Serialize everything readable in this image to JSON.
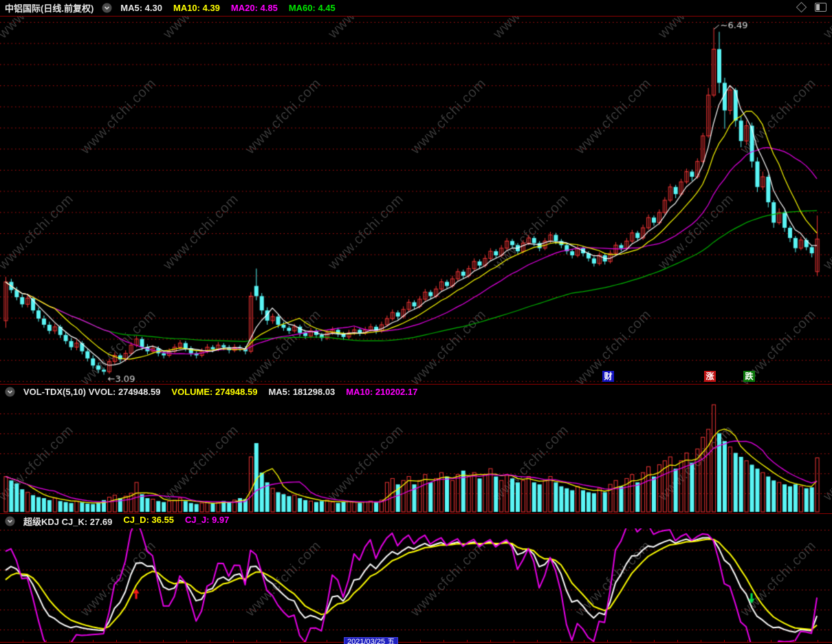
{
  "window": {
    "top_right_icons": [
      "diamond-icon",
      "panel-icon"
    ]
  },
  "main_header": {
    "title": "中铝国际(日线.前复权)",
    "indicators": [
      {
        "label": "MA5: 4.30",
        "color": "#e8e8e8"
      },
      {
        "label": "MA10: 4.39",
        "color": "#ffff00"
      },
      {
        "label": "MA20: 4.85",
        "color": "#ff00ff"
      },
      {
        "label": "MA60: 4.45",
        "color": "#00e600"
      }
    ]
  },
  "volume_header": {
    "segments": [
      {
        "label": "VOL-TDX(5,10) VVOL: 274948.59",
        "color": "#e8e8e8"
      },
      {
        "label": "VOLUME: 274948.59",
        "color": "#ffff00"
      },
      {
        "label": "MA5: 181298.03",
        "color": "#e8e8e8"
      },
      {
        "label": "MA10: 210202.17",
        "color": "#ff00ff"
      }
    ]
  },
  "kdj_header": {
    "segments": [
      {
        "label": "超级KDJ CJ_K: 27.69",
        "color": "#e8e8e8"
      },
      {
        "label": "CJ_D: 36.55",
        "color": "#ffff00"
      },
      {
        "label": "CJ_J: 9.97",
        "color": "#ff00ff"
      }
    ]
  },
  "badges": [
    {
      "label": "财",
      "bg": "#1515c0"
    },
    {
      "label": "涨",
      "bg": "#c01515"
    },
    {
      "label": "跌",
      "bg": "#0d7a0d"
    }
  ],
  "bottom_bar": {
    "date_label": "2021/03/25 五"
  },
  "watermark": {
    "text": "www.cfchi.com"
  },
  "annotations": {
    "high_label": "6.49",
    "low_label": "3.09"
  },
  "chart_data": {
    "type": "candlestick",
    "title": "中铝国际 日线 前复权",
    "price_high": 6.49,
    "price_low": 3.09,
    "y_range": [
      3.0,
      6.6
    ],
    "grid": "dotted-red-horizontal",
    "price_mas": [
      {
        "period": 5,
        "color": "#ffffff"
      },
      {
        "period": 10,
        "color": "#ffff00"
      },
      {
        "period": 20,
        "color": "#e800e8"
      },
      {
        "period": 60,
        "color": "#00b400"
      }
    ],
    "volume_mas": [
      {
        "period": 5,
        "color": "#ffff00"
      },
      {
        "period": 10,
        "color": "#e800e8"
      }
    ],
    "volume_scale_max": 560,
    "markers": {
      "high_index": 130,
      "low_index": 18,
      "buy_arrow_index": 24,
      "sell_arrow_index": 137
    },
    "kdj_last": {
      "K": 27.69,
      "D": 36.55,
      "J": 9.97
    },
    "candles": [
      [
        3.62,
        4.05,
        3.55,
        4.0
      ],
      [
        4.0,
        4.03,
        3.89,
        3.92
      ],
      [
        3.92,
        3.95,
        3.82,
        3.85
      ],
      [
        3.85,
        3.88,
        3.75,
        3.78
      ],
      [
        3.78,
        3.87,
        3.75,
        3.84
      ],
      [
        3.84,
        3.86,
        3.69,
        3.72
      ],
      [
        3.72,
        3.75,
        3.61,
        3.64
      ],
      [
        3.64,
        3.67,
        3.55,
        3.58
      ],
      [
        3.58,
        3.61,
        3.49,
        3.52
      ],
      [
        3.52,
        3.59,
        3.49,
        3.56
      ],
      [
        3.56,
        3.58,
        3.45,
        3.48
      ],
      [
        3.48,
        3.51,
        3.39,
        3.42
      ],
      [
        3.42,
        3.45,
        3.33,
        3.36
      ],
      [
        3.36,
        3.43,
        3.33,
        3.4
      ],
      [
        3.4,
        3.42,
        3.29,
        3.32
      ],
      [
        3.32,
        3.35,
        3.22,
        3.25
      ],
      [
        3.25,
        3.28,
        3.15,
        3.18
      ],
      [
        3.18,
        3.21,
        3.11,
        3.14
      ],
      [
        3.14,
        3.16,
        3.09,
        3.12
      ],
      [
        3.12,
        3.25,
        3.1,
        3.22
      ],
      [
        3.22,
        3.31,
        3.19,
        3.28
      ],
      [
        3.28,
        3.3,
        3.21,
        3.24
      ],
      [
        3.24,
        3.33,
        3.22,
        3.3
      ],
      [
        3.3,
        3.41,
        3.28,
        3.38
      ],
      [
        3.38,
        3.47,
        3.36,
        3.44
      ],
      [
        3.44,
        3.46,
        3.33,
        3.36
      ],
      [
        3.36,
        3.39,
        3.29,
        3.32
      ],
      [
        3.32,
        3.38,
        3.3,
        3.35
      ],
      [
        3.35,
        3.37,
        3.27,
        3.3
      ],
      [
        3.3,
        3.33,
        3.25,
        3.28
      ],
      [
        3.28,
        3.35,
        3.26,
        3.32
      ],
      [
        3.32,
        3.39,
        3.3,
        3.36
      ],
      [
        3.36,
        3.43,
        3.34,
        3.4
      ],
      [
        3.4,
        3.42,
        3.32,
        3.35
      ],
      [
        3.35,
        3.37,
        3.27,
        3.3
      ],
      [
        3.3,
        3.32,
        3.25,
        3.28
      ],
      [
        3.28,
        3.35,
        3.26,
        3.32
      ],
      [
        3.32,
        3.39,
        3.3,
        3.36
      ],
      [
        3.36,
        3.38,
        3.31,
        3.34
      ],
      [
        3.34,
        3.41,
        3.32,
        3.38
      ],
      [
        3.38,
        3.4,
        3.33,
        3.36
      ],
      [
        3.36,
        3.38,
        3.3,
        3.33
      ],
      [
        3.33,
        3.39,
        3.31,
        3.36
      ],
      [
        3.36,
        3.38,
        3.32,
        3.35
      ],
      [
        3.35,
        3.37,
        3.29,
        3.32
      ],
      [
        3.32,
        3.9,
        3.3,
        3.86
      ],
      [
        3.96,
        4.13,
        3.82,
        3.86
      ],
      [
        3.86,
        3.89,
        3.68,
        3.72
      ],
      [
        3.72,
        3.75,
        3.58,
        3.62
      ],
      [
        3.62,
        3.69,
        3.59,
        3.66
      ],
      [
        3.66,
        3.68,
        3.55,
        3.58
      ],
      [
        3.58,
        3.61,
        3.52,
        3.55
      ],
      [
        3.55,
        3.57,
        3.49,
        3.52
      ],
      [
        3.52,
        3.59,
        3.5,
        3.56
      ],
      [
        3.56,
        3.58,
        3.47,
        3.5
      ],
      [
        3.5,
        3.52,
        3.44,
        3.47
      ],
      [
        3.47,
        3.55,
        3.45,
        3.52
      ],
      [
        3.52,
        3.54,
        3.45,
        3.48
      ],
      [
        3.48,
        3.5,
        3.42,
        3.45
      ],
      [
        3.45,
        3.53,
        3.43,
        3.5
      ],
      [
        3.5,
        3.56,
        3.48,
        3.53
      ],
      [
        3.53,
        3.55,
        3.46,
        3.49
      ],
      [
        3.49,
        3.51,
        3.43,
        3.46
      ],
      [
        3.46,
        3.53,
        3.44,
        3.5
      ],
      [
        3.5,
        3.56,
        3.48,
        3.53
      ],
      [
        3.53,
        3.55,
        3.47,
        3.5
      ],
      [
        3.5,
        3.56,
        3.48,
        3.53
      ],
      [
        3.53,
        3.59,
        3.51,
        3.56
      ],
      [
        3.56,
        3.58,
        3.49,
        3.52
      ],
      [
        3.52,
        3.61,
        3.5,
        3.58
      ],
      [
        3.58,
        3.67,
        3.56,
        3.64
      ],
      [
        3.64,
        3.73,
        3.62,
        3.7
      ],
      [
        3.7,
        3.72,
        3.63,
        3.66
      ],
      [
        3.66,
        3.76,
        3.64,
        3.73
      ],
      [
        3.73,
        3.83,
        3.71,
        3.8
      ],
      [
        3.8,
        3.82,
        3.73,
        3.76
      ],
      [
        3.76,
        3.86,
        3.74,
        3.83
      ],
      [
        3.83,
        3.93,
        3.81,
        3.9
      ],
      [
        3.9,
        3.92,
        3.83,
        3.86
      ],
      [
        3.86,
        3.96,
        3.84,
        3.93
      ],
      [
        3.93,
        4.03,
        3.91,
        4.0
      ],
      [
        4.0,
        4.02,
        3.93,
        3.96
      ],
      [
        3.96,
        4.06,
        3.94,
        4.03
      ],
      [
        4.03,
        4.13,
        4.01,
        4.1
      ],
      [
        4.1,
        4.12,
        4.03,
        4.06
      ],
      [
        4.06,
        4.16,
        4.04,
        4.13
      ],
      [
        4.13,
        4.23,
        4.11,
        4.2
      ],
      [
        4.2,
        4.22,
        4.13,
        4.16
      ],
      [
        4.16,
        4.26,
        4.14,
        4.23
      ],
      [
        4.23,
        4.33,
        4.21,
        4.3
      ],
      [
        4.3,
        4.32,
        4.23,
        4.26
      ],
      [
        4.26,
        4.36,
        4.24,
        4.33
      ],
      [
        4.33,
        4.43,
        4.31,
        4.4
      ],
      [
        4.4,
        4.42,
        4.33,
        4.36
      ],
      [
        4.36,
        4.38,
        4.27,
        4.3
      ],
      [
        4.3,
        4.41,
        4.28,
        4.38
      ],
      [
        4.38,
        4.46,
        4.36,
        4.43
      ],
      [
        4.43,
        4.45,
        4.35,
        4.38
      ],
      [
        4.38,
        4.4,
        4.3,
        4.33
      ],
      [
        4.33,
        4.43,
        4.31,
        4.4
      ],
      [
        4.4,
        4.49,
        4.38,
        4.46
      ],
      [
        4.46,
        4.48,
        4.37,
        4.4
      ],
      [
        4.4,
        4.42,
        4.33,
        4.36
      ],
      [
        4.36,
        4.38,
        4.27,
        4.3
      ],
      [
        4.3,
        4.32,
        4.23,
        4.26
      ],
      [
        4.26,
        4.36,
        4.24,
        4.33
      ],
      [
        4.33,
        4.35,
        4.25,
        4.28
      ],
      [
        4.28,
        4.3,
        4.2,
        4.23
      ],
      [
        4.23,
        4.25,
        4.15,
        4.18
      ],
      [
        4.18,
        4.29,
        4.16,
        4.26
      ],
      [
        4.26,
        4.28,
        4.17,
        4.2
      ],
      [
        4.2,
        4.31,
        4.18,
        4.28
      ],
      [
        4.28,
        4.39,
        4.26,
        4.36
      ],
      [
        4.36,
        4.38,
        4.3,
        4.33
      ],
      [
        4.33,
        4.43,
        4.31,
        4.4
      ],
      [
        4.4,
        4.51,
        4.38,
        4.48
      ],
      [
        4.48,
        4.5,
        4.4,
        4.43
      ],
      [
        4.43,
        4.56,
        4.41,
        4.53
      ],
      [
        4.53,
        4.66,
        4.51,
        4.63
      ],
      [
        4.63,
        4.65,
        4.55,
        4.58
      ],
      [
        4.58,
        4.71,
        4.56,
        4.68
      ],
      [
        4.68,
        4.83,
        4.66,
        4.8
      ],
      [
        4.8,
        4.96,
        4.78,
        4.93
      ],
      [
        4.93,
        4.95,
        4.82,
        4.86
      ],
      [
        4.86,
        5.01,
        4.84,
        4.98
      ],
      [
        4.98,
        5.11,
        4.96,
        5.08
      ],
      [
        5.08,
        5.1,
        4.99,
        5.03
      ],
      [
        5.03,
        5.21,
        5.01,
        5.18
      ],
      [
        5.18,
        5.46,
        5.16,
        5.43
      ],
      [
        5.43,
        5.9,
        5.41,
        5.83
      ],
      [
        5.83,
        6.49,
        5.81,
        6.28
      ],
      [
        6.28,
        6.45,
        5.85,
        5.95
      ],
      [
        5.95,
        6.0,
        5.5,
        5.68
      ],
      [
        5.68,
        5.92,
        5.64,
        5.88
      ],
      [
        5.88,
        5.9,
        5.52,
        5.58
      ],
      [
        5.58,
        5.62,
        5.32,
        5.38
      ],
      [
        5.38,
        5.58,
        5.34,
        5.53
      ],
      [
        5.53,
        5.56,
        5.12,
        5.18
      ],
      [
        5.18,
        5.22,
        4.88,
        4.93
      ],
      [
        4.93,
        5.08,
        4.9,
        5.03
      ],
      [
        5.03,
        5.05,
        4.73,
        4.78
      ],
      [
        4.78,
        4.8,
        4.53,
        4.58
      ],
      [
        4.58,
        4.72,
        4.56,
        4.68
      ],
      [
        4.68,
        4.7,
        4.49,
        4.53
      ],
      [
        4.53,
        4.55,
        4.39,
        4.43
      ],
      [
        4.43,
        4.45,
        4.29,
        4.33
      ],
      [
        4.33,
        4.44,
        4.31,
        4.41
      ],
      [
        4.41,
        4.43,
        4.31,
        4.34
      ],
      [
        4.34,
        4.36,
        4.24,
        4.28
      ],
      [
        4.1,
        4.65,
        4.06,
        4.42
      ]
    ],
    "volumes": [
      180,
      160,
      145,
      115,
      100,
      85,
      75,
      70,
      60,
      70,
      55,
      50,
      45,
      55,
      48,
      42,
      40,
      45,
      60,
      75,
      85,
      70,
      80,
      95,
      150,
      90,
      70,
      65,
      55,
      50,
      55,
      60,
      70,
      55,
      45,
      40,
      45,
      50,
      42,
      48,
      55,
      50,
      60,
      70,
      65,
      280,
      350,
      200,
      150,
      120,
      100,
      90,
      80,
      85,
      70,
      60,
      55,
      50,
      55,
      60,
      50,
      45,
      50,
      55,
      50,
      45,
      50,
      55,
      48,
      60,
      150,
      170,
      140,
      160,
      180,
      140,
      160,
      190,
      150,
      170,
      200,
      180,
      160,
      190,
      210,
      180,
      200,
      170,
      190,
      220,
      180,
      160,
      190,
      170,
      150,
      160,
      180,
      150,
      140,
      160,
      180,
      150,
      130,
      120,
      110,
      130,
      110,
      100,
      95,
      120,
      100,
      140,
      160,
      130,
      170,
      190,
      150,
      200,
      230,
      180,
      240,
      260,
      280,
      220,
      260,
      300,
      250,
      320,
      380,
      420,
      545,
      400,
      360,
      330,
      300,
      280,
      260,
      240,
      220,
      200,
      180,
      160,
      150,
      140,
      130,
      140,
      130,
      120,
      125,
      275
    ]
  }
}
